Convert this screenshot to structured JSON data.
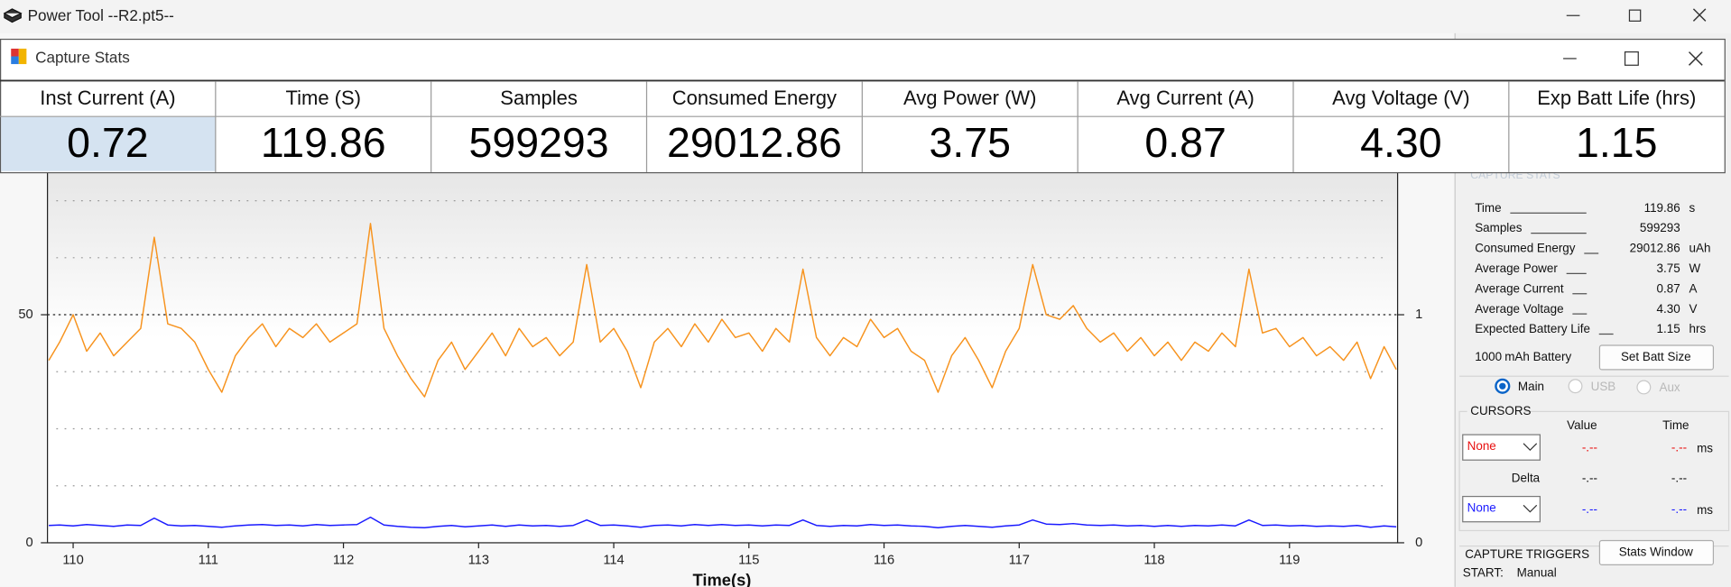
{
  "app": {
    "title": "Power Tool --R2.pt5--"
  },
  "stats_window": {
    "title": "Capture Stats",
    "columns": [
      {
        "label": "Inst Current (A)",
        "value": "0.72"
      },
      {
        "label": "Time (S)",
        "value": "119.86"
      },
      {
        "label": "Samples",
        "value": "599293"
      },
      {
        "label": "Consumed Energy",
        "value": "29012.86"
      },
      {
        "label": "Avg Power (W)",
        "value": "3.75"
      },
      {
        "label": "Avg Current (A)",
        "value": "0.87"
      },
      {
        "label": "Avg Voltage (V)",
        "value": "4.30"
      },
      {
        "label": "Exp Batt Life (hrs)",
        "value": "1.15"
      }
    ]
  },
  "chart_data": {
    "type": "line",
    "xlabel": "Time(s)",
    "xlim": [
      109.81,
      119.8
    ],
    "xticks": [
      110,
      111,
      112,
      113,
      114,
      115,
      116,
      117,
      118,
      119
    ],
    "ylim": [
      0,
      81.5
    ],
    "yticks": [
      0,
      50
    ],
    "grid_lines": [
      12.5,
      25,
      37.5,
      62.5,
      75
    ],
    "y2lim": [
      0,
      1.63
    ],
    "y2ticks": [
      0,
      1
    ],
    "x": [
      109.82,
      109.9,
      110,
      110.1,
      110.2,
      110.3,
      110.4,
      110.5,
      110.6,
      110.7,
      110.8,
      110.9,
      111,
      111.1,
      111.2,
      111.3,
      111.4,
      111.5,
      111.6,
      111.7,
      111.8,
      111.9,
      112,
      112.1,
      112.2,
      112.3,
      112.4,
      112.5,
      112.6,
      112.7,
      112.8,
      112.9,
      113,
      113.1,
      113.2,
      113.3,
      113.4,
      113.5,
      113.6,
      113.7,
      113.8,
      113.9,
      114,
      114.1,
      114.2,
      114.3,
      114.4,
      114.5,
      114.6,
      114.7,
      114.8,
      114.9,
      115,
      115.1,
      115.2,
      115.3,
      115.4,
      115.5,
      115.6,
      115.7,
      115.8,
      115.9,
      116,
      116.1,
      116.2,
      116.3,
      116.4,
      116.5,
      116.6,
      116.7,
      116.8,
      116.9,
      117,
      117.1,
      117.2,
      117.3,
      117.4,
      117.5,
      117.6,
      117.7,
      117.8,
      117.9,
      118,
      118.1,
      118.2,
      118.3,
      118.4,
      118.5,
      118.6,
      118.7,
      118.8,
      118.9,
      119,
      119.1,
      119.2,
      119.3,
      119.4,
      119.5,
      119.6,
      119.7,
      119.79
    ],
    "series": [
      {
        "color": "#f7931e",
        "values": [
          40,
          44,
          50,
          42,
          46,
          41,
          44,
          47,
          67,
          48,
          47,
          44,
          38,
          33,
          41,
          45,
          48,
          43,
          47,
          45,
          48,
          44,
          46,
          48,
          70,
          47,
          41,
          36,
          32,
          40,
          44,
          38,
          42,
          46,
          41,
          47,
          43,
          45,
          41,
          44,
          61,
          44,
          47,
          42,
          34,
          44,
          47,
          43,
          48,
          44,
          49,
          45,
          46,
          42,
          47,
          44,
          60,
          45,
          41,
          45,
          43,
          49,
          45,
          47,
          42,
          40,
          33,
          41,
          45,
          40,
          34,
          42,
          47,
          61,
          50,
          49,
          52,
          47,
          44,
          46,
          42,
          45,
          41,
          44,
          40,
          44,
          42,
          46,
          43,
          60,
          46,
          47,
          43,
          45,
          41,
          43,
          40,
          44,
          36,
          43,
          38
        ]
      },
      {
        "color": "#1a1aff",
        "values": [
          3.8,
          3.9,
          3.7,
          4.0,
          3.8,
          3.6,
          3.9,
          3.8,
          5.4,
          3.9,
          3.7,
          3.8,
          3.6,
          3.4,
          3.7,
          3.9,
          4.0,
          3.8,
          3.9,
          3.7,
          4.0,
          3.8,
          3.9,
          4.0,
          5.6,
          3.9,
          3.6,
          3.4,
          3.3,
          3.6,
          3.8,
          3.5,
          3.7,
          3.9,
          3.6,
          3.9,
          3.7,
          3.8,
          3.6,
          3.8,
          5.0,
          3.8,
          3.9,
          3.7,
          3.4,
          3.8,
          3.9,
          3.7,
          4.0,
          3.8,
          4.0,
          3.8,
          3.9,
          3.7,
          3.9,
          3.8,
          5.0,
          3.8,
          3.6,
          3.8,
          3.7,
          4.0,
          3.8,
          3.9,
          3.7,
          3.6,
          3.3,
          3.6,
          3.8,
          3.6,
          3.4,
          3.7,
          3.9,
          5.0,
          4.1,
          4.0,
          4.2,
          3.9,
          3.8,
          3.9,
          3.7,
          3.8,
          3.6,
          3.8,
          3.6,
          3.8,
          3.7,
          3.9,
          3.7,
          5.0,
          3.8,
          3.9,
          3.7,
          3.8,
          3.6,
          3.7,
          3.6,
          3.8,
          3.4,
          3.7,
          3.5
        ]
      }
    ]
  },
  "side_panel": {
    "stats_title": "CAPTURE STATS",
    "rows": [
      {
        "label": "Time",
        "value": "119.86",
        "unit": "s"
      },
      {
        "label": "Samples",
        "value": "599293"
      },
      {
        "label": "Consumed Energy",
        "value": "29012.86",
        "unit": "uAh"
      },
      {
        "label": "Average Power",
        "value": "3.75",
        "unit": "W"
      },
      {
        "label": "Average Current",
        "value": "0.87",
        "unit": "A"
      },
      {
        "label": "Average Voltage",
        "value": "4.30",
        "unit": "V"
      },
      {
        "label": "Expected Battery Life",
        "value": "1.15",
        "unit": "hrs"
      }
    ],
    "battery": {
      "size": "1000",
      "label": "mAh Battery",
      "button": "Set Batt Size"
    },
    "channels": [
      "Main",
      "USB",
      "Aux"
    ],
    "cursors": {
      "title": "CURSORS",
      "value_header": "Value",
      "time_header": "Time",
      "cursor1": {
        "select": "None",
        "value": "-.--",
        "time": "-.--",
        "unit": "ms"
      },
      "delta": {
        "label": "Delta",
        "value": "-.--",
        "time": "-.--"
      },
      "cursor2": {
        "select": "None",
        "value": "-.--",
        "time": "-.--",
        "unit": "ms"
      }
    },
    "triggers": {
      "title": "CAPTURE TRIGGERS",
      "button": "Stats Window",
      "start_label": "START:",
      "start_value": "Manual"
    }
  }
}
